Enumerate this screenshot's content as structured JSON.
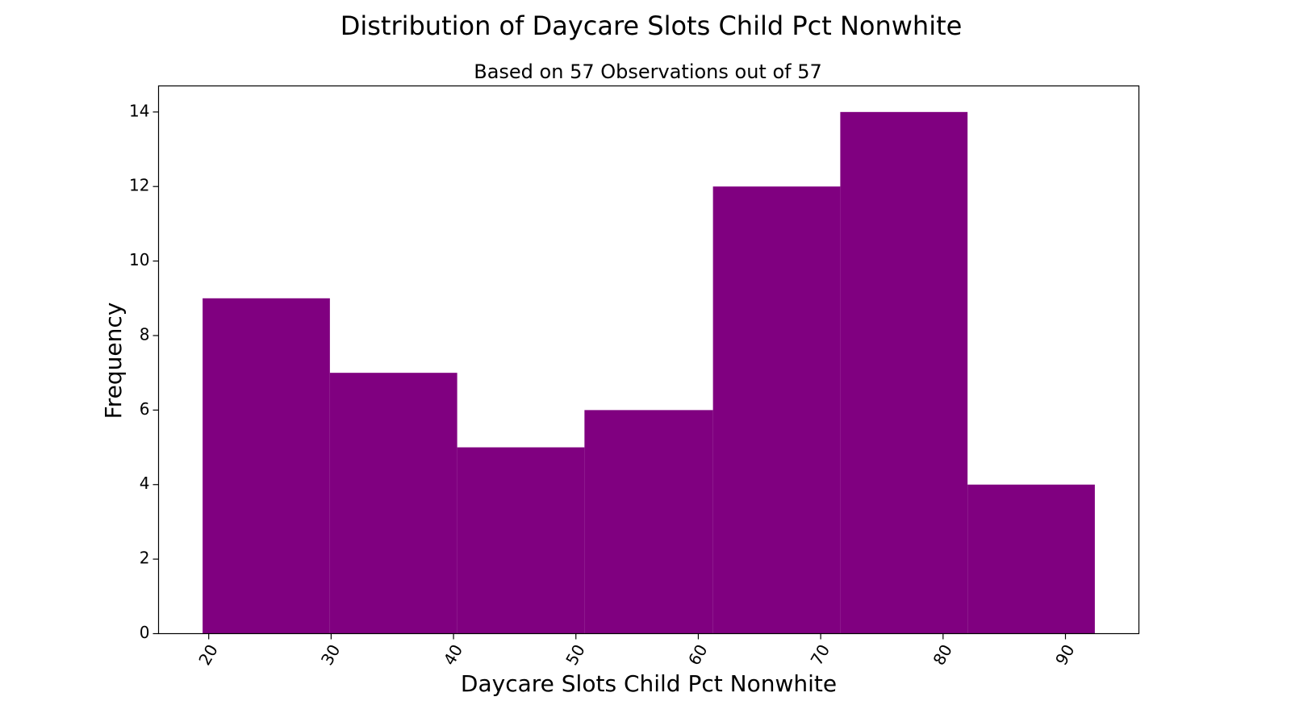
{
  "chart_data": {
    "type": "bar",
    "title": "Distribution of Daycare Slots Child Pct Nonwhite",
    "subtitle": "Based on 57 Observations out of 57",
    "xlabel": "Daycare Slots Child Pct Nonwhite",
    "ylabel": "Frequency",
    "bins": [
      {
        "start": 19.5,
        "end": 29.9,
        "count": 9
      },
      {
        "start": 29.9,
        "end": 40.3,
        "count": 7
      },
      {
        "start": 40.3,
        "end": 50.7,
        "count": 5
      },
      {
        "start": 50.7,
        "end": 61.2,
        "count": 6
      },
      {
        "start": 61.2,
        "end": 71.6,
        "count": 12
      },
      {
        "start": 71.6,
        "end": 82.0,
        "count": 14
      },
      {
        "start": 82.0,
        "end": 92.4,
        "count": 4
      }
    ],
    "xlim": [
      15.9,
      96.0
    ],
    "ylim": [
      0,
      14.7
    ],
    "x_ticks": [
      "20",
      "30",
      "40",
      "50",
      "60",
      "70",
      "80",
      "90"
    ],
    "y_ticks": [
      "0",
      "2",
      "4",
      "6",
      "8",
      "10",
      "12",
      "14"
    ],
    "bar_color": "#800080",
    "grid": false
  }
}
